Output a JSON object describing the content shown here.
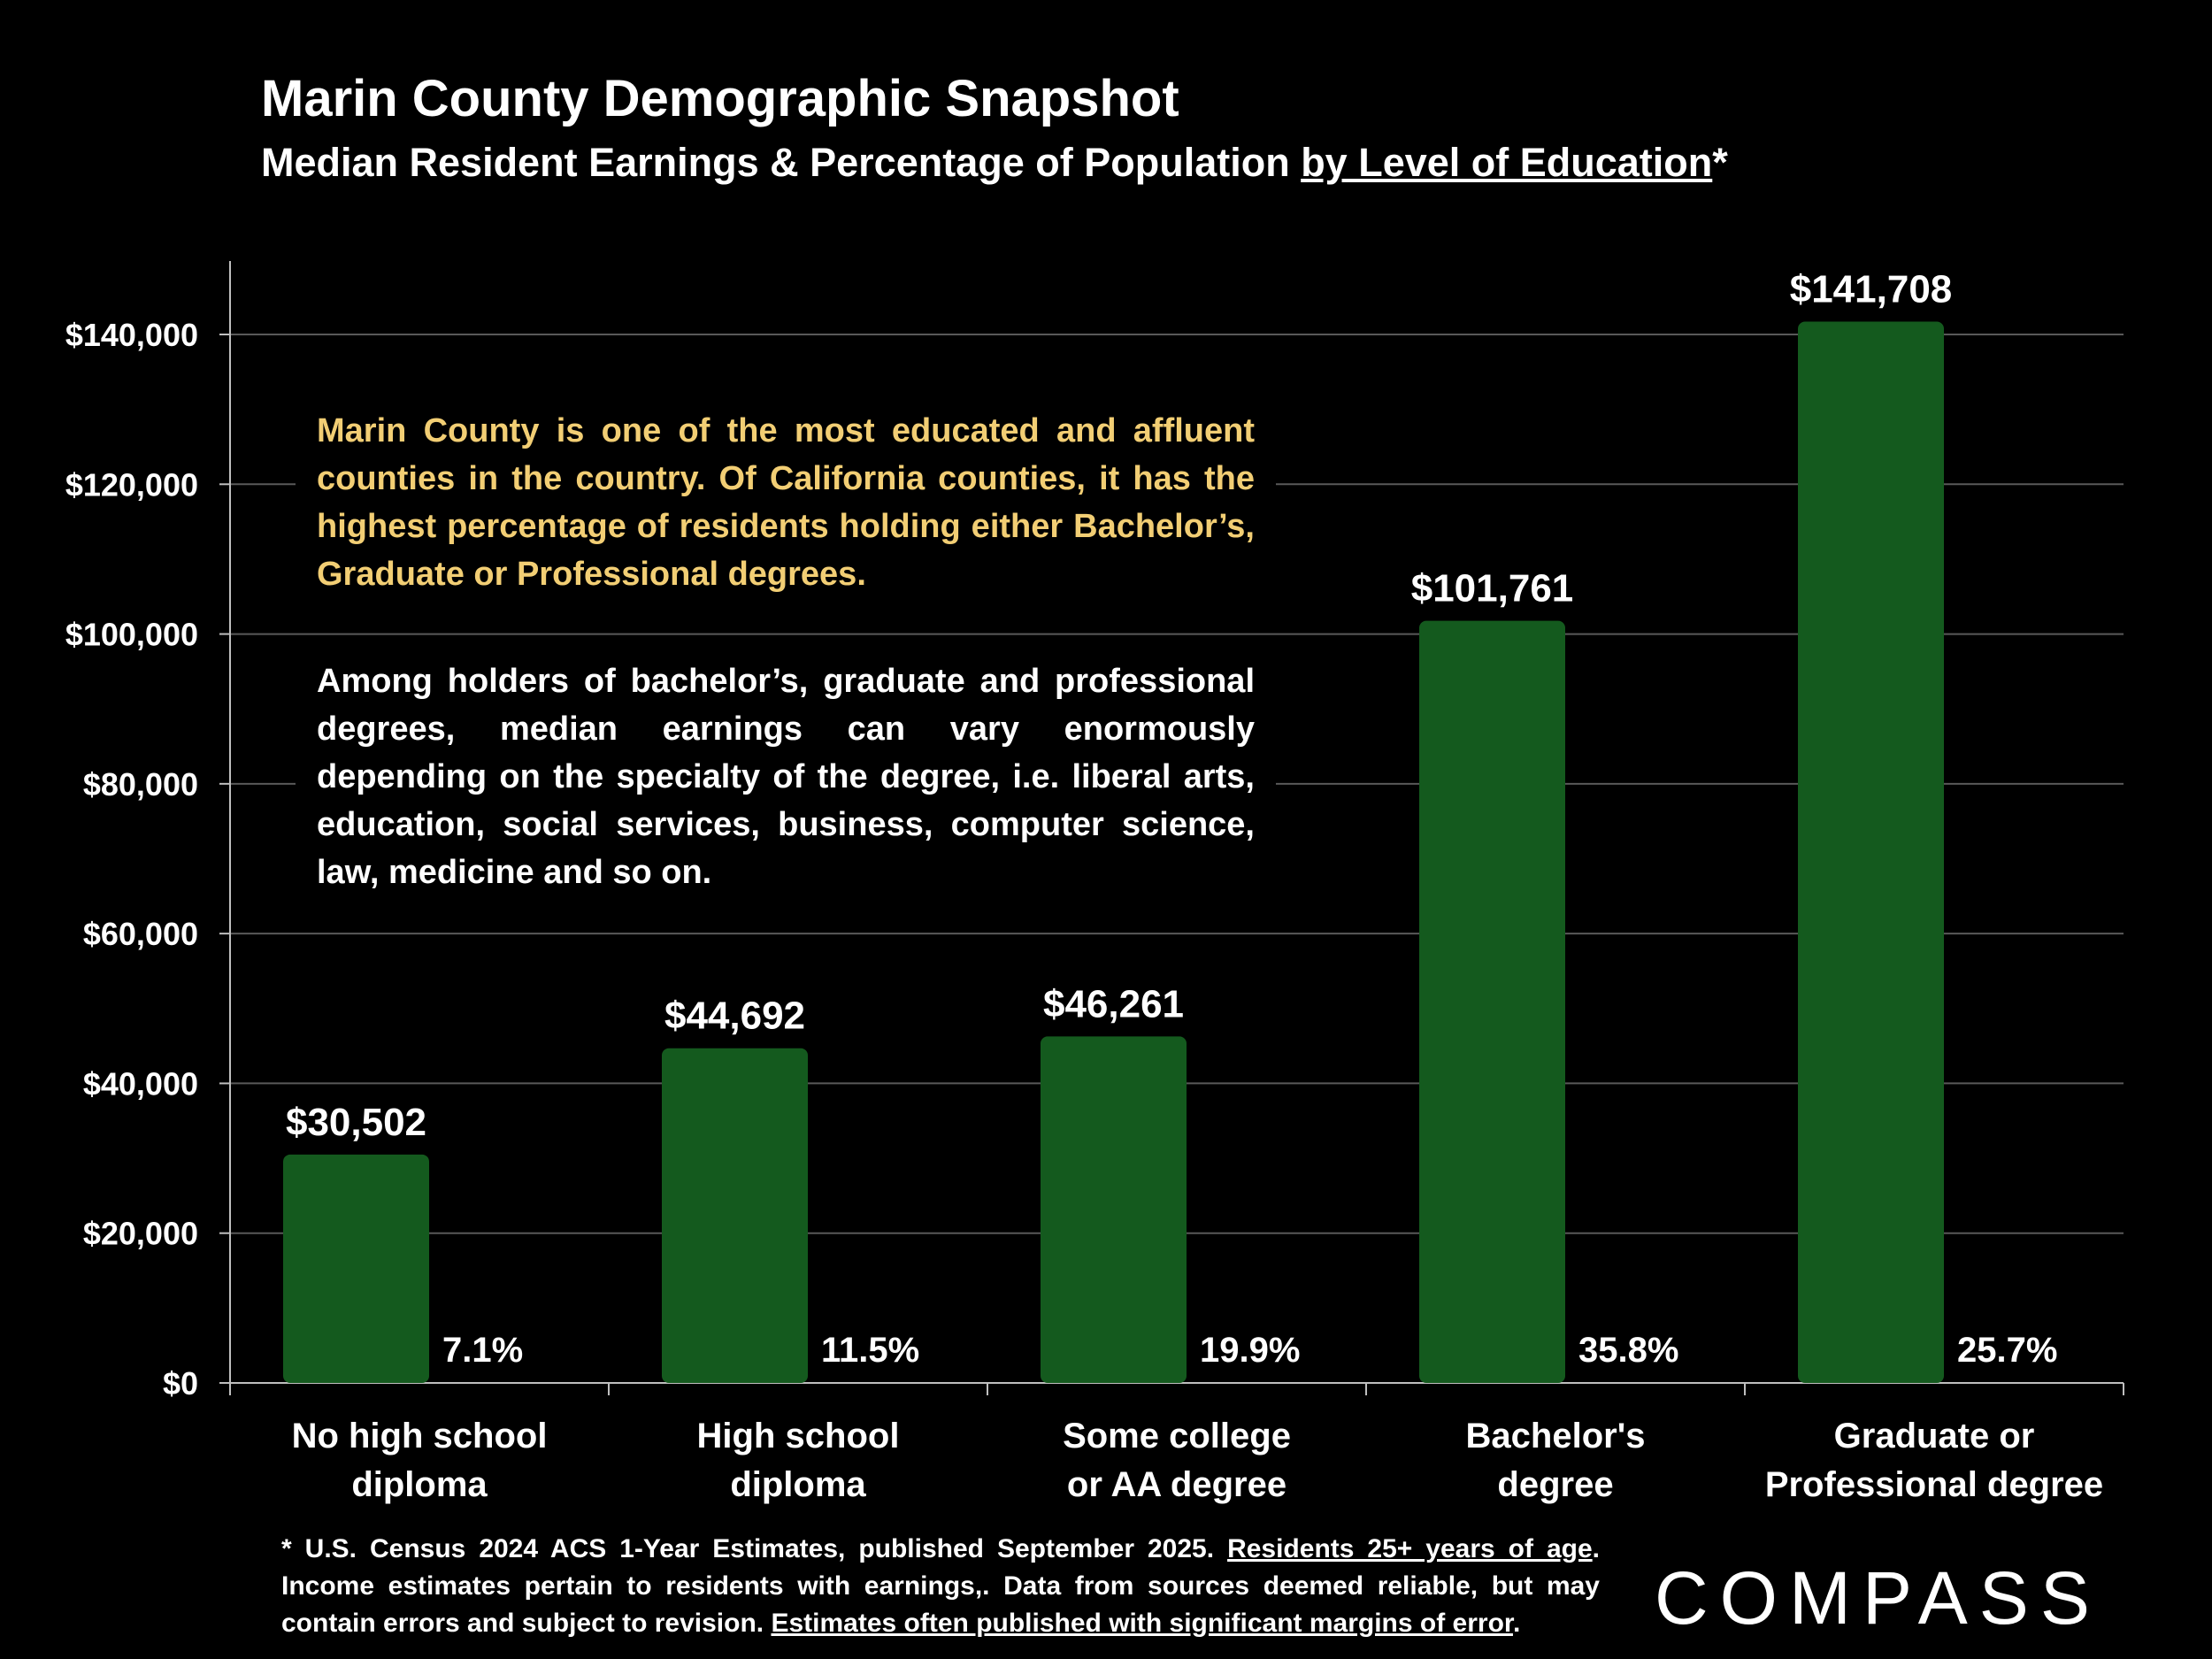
{
  "header": {
    "title": "Marin County Demographic Snapshot",
    "subtitle_main": "Median Resident Earnings & Percentage of Population ",
    "subtitle_underlined": "by Level of Education",
    "subtitle_suffix": "*"
  },
  "notes": {
    "highlight": "Marin County is one of the most educated and affluent counties in the country. Of California counties, it has the highest percentage of residents holding either Bachelor’s, Graduate or Professional degrees.",
    "body": "Among holders of bachelor’s, graduate and professional degrees, median earnings can vary enormously depending on the specialty of the degree, i.e. liberal arts, education, social services, business, computer science, law, medicine and so on."
  },
  "footnote": {
    "part1": "* U.S. Census 2024 ACS 1-Year Estimates, published September 2025. ",
    "part2_underlined": "Residents 25+ years of age",
    "part3": ". Income estimates pertain to residents with earnings,. Data from sources deemed reliable, but may contain errors and subject to revision. ",
    "part4_underlined": "Estimates often published with significant margins of error",
    "part5": "."
  },
  "brand": {
    "logo_text": "COMPASS"
  },
  "colors": {
    "bar": "#145A1E",
    "highlight_text": "#F2CE74",
    "gridline": "#595959",
    "background": "#000000"
  },
  "chart_data": {
    "type": "bar",
    "title": "Marin County Demographic Snapshot",
    "xlabel": "",
    "ylabel": "",
    "ylim": [
      0,
      150000
    ],
    "y_ticks": [
      0,
      20000,
      40000,
      60000,
      80000,
      100000,
      120000,
      140000
    ],
    "y_tick_labels": [
      "$0",
      "$20,000",
      "$40,000",
      "$60,000",
      "$80,000",
      "$100,000",
      "$120,000",
      "$140,000"
    ],
    "grid": true,
    "categories": [
      [
        "No high school",
        "diploma"
      ],
      [
        "High school",
        "diploma"
      ],
      [
        "Some college",
        "or AA degree"
      ],
      [
        "Bachelor's",
        "degree"
      ],
      [
        "Graduate or",
        "Professional degree"
      ]
    ],
    "series": [
      {
        "name": "Median Resident Earnings",
        "values": [
          30502,
          44692,
          46261,
          101761,
          141708
        ]
      }
    ],
    "value_labels": [
      "$30,502",
      "$44,692",
      "$46,261",
      "$101,761",
      "$141,708"
    ],
    "population_percent_labels": [
      "7.1%",
      "11.5%",
      "19.9%",
      "35.8%",
      "25.7%"
    ]
  }
}
